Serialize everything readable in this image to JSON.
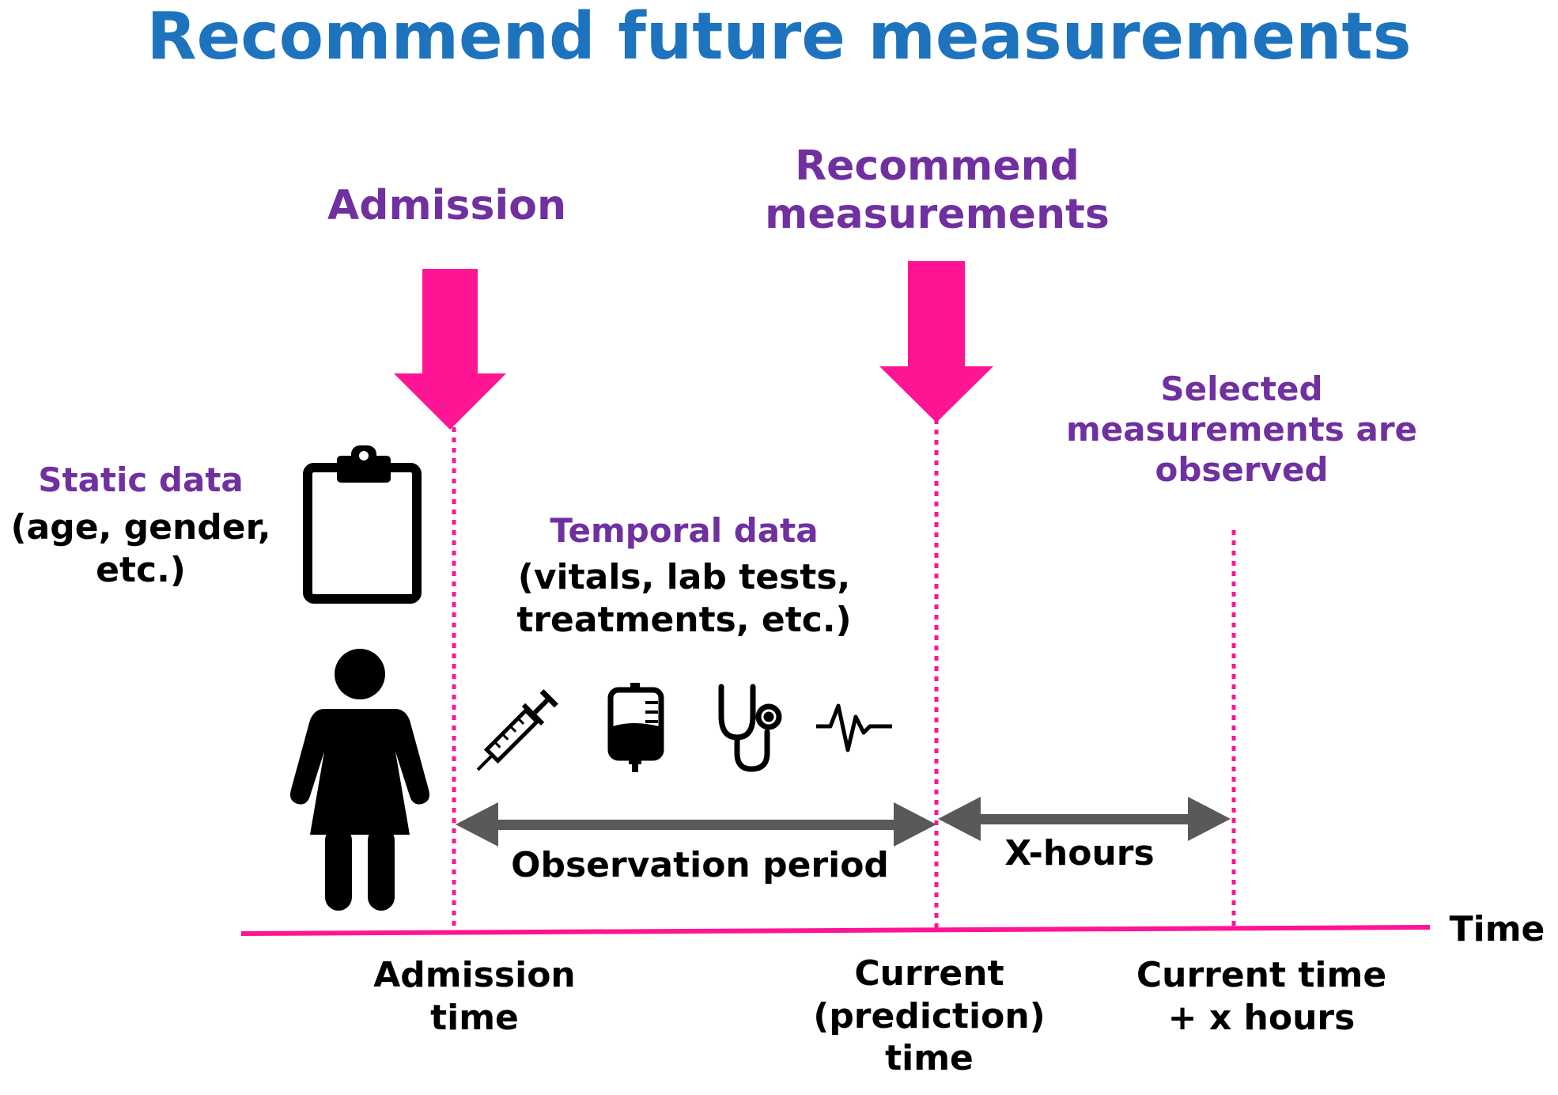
{
  "title": "Recommend future measurements",
  "labels": {
    "admission_header": "Admission",
    "recommend_header": "Recommend\nmeasurements",
    "selected_header": "Selected\nmeasurements are\nobserved",
    "static_title": "Static data",
    "static_detail": "(age, gender,\netc.)",
    "temporal_title": "Temporal data",
    "temporal_detail": "(vitals, lab tests,\ntreatments, etc.)",
    "observation_period": "Observation period",
    "x_hours": "X-hours",
    "time_axis": "Time",
    "admission_time": "Admission\ntime",
    "current_time": "Current\n(prediction)\ntime",
    "future_time": "Current time\n+ x hours"
  },
  "icons": [
    "clipboard-icon",
    "patient-icon",
    "syringe-icon",
    "iv-bag-icon",
    "stethoscope-icon",
    "pulse-icon"
  ],
  "colors": {
    "title": "#1e73be",
    "heading": "#7030a0",
    "marker": "#ff1493",
    "span_arrow": "#595959",
    "text": "#000000"
  }
}
